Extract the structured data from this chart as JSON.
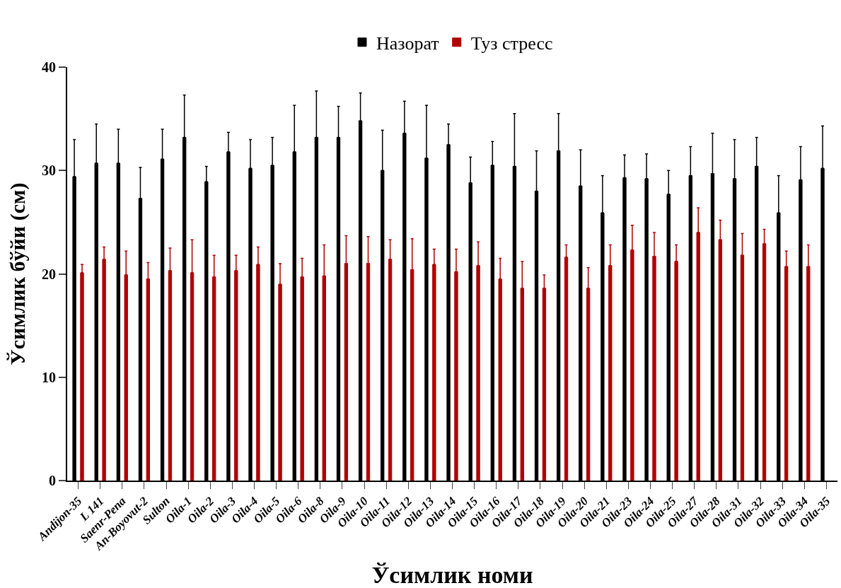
{
  "chart_data": {
    "type": "bar",
    "xlabel": "Ўсимлик номи",
    "ylabel": "Ўсимлик бўйи (см)",
    "categories": [
      "Andijon-35",
      "L 141",
      "Saenr-Pena",
      "An-Boyovut-2",
      "Sulton",
      "Oila-1",
      "Oila-2",
      "Oila-3",
      "Oila-4",
      "Oila-5",
      "Oila-6",
      "Oila-8",
      "Oila-9",
      "Oila-10",
      "Oila-11",
      "Oila-12",
      "Oila-13",
      "Oila-14",
      "Oila-15",
      "Oila-16",
      "Oila-17",
      "Oila-18",
      "Oila-19",
      "Oila-20",
      "Oila-21",
      "Oila-23",
      "Oila-24",
      "Oila-25",
      "Oila-27",
      "Oila-28",
      "Oila-31",
      "Oila-32",
      "Oila-33",
      "Oila-34",
      "Oila-35"
    ],
    "series": [
      {
        "name": "Назорат",
        "color": "#000000",
        "values": [
          29.4,
          30.7,
          30.7,
          27.3,
          31.1,
          33.2,
          28.9,
          31.8,
          30.2,
          30.5,
          31.8,
          33.2,
          33.2,
          34.8,
          30.0,
          33.6,
          31.2,
          32.5,
          28.8,
          30.5,
          30.4,
          28.0,
          31.9,
          28.5,
          25.9,
          29.3,
          29.2,
          27.7,
          29.5,
          29.7,
          29.2,
          30.4,
          25.9,
          29.1,
          30.2
        ],
        "errors": [
          [
            29.4,
            33.0
          ],
          [
            30.7,
            34.5
          ],
          [
            30.7,
            34.0
          ],
          [
            27.3,
            30.3
          ],
          [
            31.1,
            34.0
          ],
          [
            33.2,
            37.3
          ],
          [
            28.9,
            30.4
          ],
          [
            31.8,
            33.7
          ],
          [
            30.2,
            33.0
          ],
          [
            30.5,
            33.2
          ],
          [
            31.8,
            36.3
          ],
          [
            33.2,
            37.7
          ],
          [
            33.2,
            36.2
          ],
          [
            34.8,
            37.5
          ],
          [
            30.0,
            33.9
          ],
          [
            33.6,
            36.7
          ],
          [
            31.2,
            36.3
          ],
          [
            32.5,
            34.5
          ],
          [
            28.8,
            31.3
          ],
          [
            30.5,
            32.8
          ],
          [
            30.4,
            35.5
          ],
          [
            28.0,
            31.9
          ],
          [
            31.9,
            35.5
          ],
          [
            28.5,
            32.0
          ],
          [
            25.9,
            29.5
          ],
          [
            29.3,
            31.5
          ],
          [
            29.2,
            31.6
          ],
          [
            27.7,
            30.0
          ],
          [
            29.5,
            32.3
          ],
          [
            29.7,
            33.6
          ],
          [
            29.2,
            33.0
          ],
          [
            30.4,
            33.2
          ],
          [
            25.9,
            29.5
          ],
          [
            29.1,
            32.3
          ],
          [
            30.2,
            34.3
          ]
        ]
      },
      {
        "name": "Туз стресс",
        "color": "#b00000",
        "values": [
          20.1,
          21.4,
          19.9,
          19.5,
          20.3,
          20.1,
          19.7,
          20.3,
          20.9,
          19.0,
          19.7,
          19.8,
          21.0,
          21.0,
          21.4,
          20.4,
          20.9,
          20.2,
          20.8,
          19.5,
          18.6,
          18.6,
          21.6,
          18.6,
          20.8,
          22.3,
          21.7,
          21.2,
          24.0,
          23.3,
          21.8,
          22.9,
          20.7,
          20.7,
          null
        ],
        "errors": [
          [
            20.1,
            20.9
          ],
          [
            21.4,
            22.6
          ],
          [
            19.9,
            22.2
          ],
          [
            19.5,
            21.1
          ],
          [
            20.3,
            22.5
          ],
          [
            20.1,
            23.3
          ],
          [
            19.7,
            21.8
          ],
          [
            20.3,
            21.8
          ],
          [
            20.9,
            22.6
          ],
          [
            19.0,
            21.0
          ],
          [
            19.7,
            21.5
          ],
          [
            19.8,
            22.8
          ],
          [
            21.0,
            23.7
          ],
          [
            21.0,
            23.6
          ],
          [
            21.4,
            23.3
          ],
          [
            20.4,
            23.4
          ],
          [
            20.9,
            22.4
          ],
          [
            20.2,
            22.4
          ],
          [
            20.8,
            23.1
          ],
          [
            19.5,
            21.5
          ],
          [
            18.6,
            21.2
          ],
          [
            18.6,
            19.9
          ],
          [
            21.6,
            22.8
          ],
          [
            18.6,
            20.6
          ],
          [
            20.8,
            22.8
          ],
          [
            22.3,
            24.7
          ],
          [
            21.7,
            24.0
          ],
          [
            21.2,
            22.8
          ],
          [
            24.0,
            26.4
          ],
          [
            23.3,
            25.2
          ],
          [
            21.8,
            23.9
          ],
          [
            22.9,
            24.3
          ],
          [
            20.7,
            22.2
          ],
          [
            20.7,
            22.8
          ],
          null
        ]
      }
    ],
    "ylim": [
      0,
      40
    ],
    "yticks": [
      0,
      10,
      20,
      30,
      40
    ],
    "grid": false,
    "legend": "top"
  }
}
